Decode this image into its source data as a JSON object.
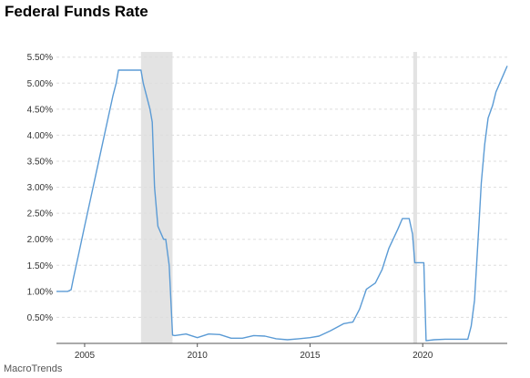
{
  "title": "Federal Funds Rate",
  "source_label": "MacroTrends",
  "colors": {
    "line": "#5b9bd5",
    "recession": "#e3e3e3",
    "grid": "#dddddd",
    "axis": "#555555"
  },
  "chart_data": {
    "type": "line",
    "title": "Federal Funds Rate",
    "xlabel": "",
    "ylabel": "",
    "grid": true,
    "legend": "none",
    "xlim": [
      2003.75,
      2023.75
    ],
    "ylim": [
      0,
      5.6
    ],
    "x_ticks": [
      2005,
      2010,
      2015,
      2020
    ],
    "x_tick_labels": [
      "2005",
      "2010",
      "2015",
      "2020"
    ],
    "y_ticks": [
      0.5,
      1.0,
      1.5,
      2.0,
      2.5,
      3.0,
      3.5,
      4.0,
      4.5,
      5.0,
      5.5
    ],
    "y_tick_labels": [
      "0.50%",
      "1.00%",
      "1.50%",
      "2.00%",
      "2.50%",
      "3.00%",
      "3.50%",
      "4.00%",
      "4.50%",
      "5.00%",
      "5.50%"
    ],
    "recessions": [
      [
        2007.5,
        2008.9
      ],
      [
        2019.58,
        2019.75
      ]
    ],
    "series": [
      {
        "x": [
          2003.75,
          2004.0,
          2004.25,
          2004.4,
          2004.5,
          2004.75,
          2005.0,
          2005.25,
          2005.5,
          2005.75,
          2006.0,
          2006.25,
          2006.4,
          2006.5,
          2006.75,
          2007.0,
          2007.25,
          2007.5,
          2007.6,
          2007.75,
          2007.9,
          2008.0,
          2008.1,
          2008.25,
          2008.5,
          2008.6,
          2008.75,
          2008.9,
          2009.0,
          2009.5,
          2010.0,
          2010.5,
          2011.0,
          2011.5,
          2012.0,
          2012.5,
          2013.0,
          2013.5,
          2014.0,
          2014.5,
          2015.0,
          2015.4,
          2015.9,
          2016.5,
          2016.9,
          2017.2,
          2017.5,
          2017.9,
          2018.2,
          2018.5,
          2018.9,
          2019.1,
          2019.4,
          2019.55,
          2019.65,
          2019.8,
          2020.05,
          2020.15,
          2020.5,
          2021.0,
          2021.5,
          2022.0,
          2022.15,
          2022.3,
          2022.4,
          2022.5,
          2022.6,
          2022.75,
          2022.9,
          2023.1,
          2023.25,
          2023.5,
          2023.75
        ],
        "y": [
          1.0,
          1.0,
          1.0,
          1.03,
          1.25,
          1.75,
          2.25,
          2.75,
          3.25,
          3.75,
          4.25,
          4.75,
          5.0,
          5.25,
          5.25,
          5.25,
          5.25,
          5.25,
          5.0,
          4.75,
          4.5,
          4.25,
          3.0,
          2.25,
          2.0,
          2.0,
          1.5,
          0.16,
          0.15,
          0.18,
          0.11,
          0.18,
          0.17,
          0.1,
          0.1,
          0.15,
          0.14,
          0.09,
          0.07,
          0.09,
          0.11,
          0.14,
          0.24,
          0.38,
          0.41,
          0.66,
          1.04,
          1.16,
          1.42,
          1.83,
          2.2,
          2.4,
          2.4,
          2.1,
          1.55,
          1.55,
          1.55,
          0.05,
          0.07,
          0.08,
          0.08,
          0.08,
          0.33,
          0.83,
          1.58,
          2.33,
          3.08,
          3.83,
          4.33,
          4.57,
          4.83,
          5.08,
          5.33
        ]
      }
    ]
  }
}
